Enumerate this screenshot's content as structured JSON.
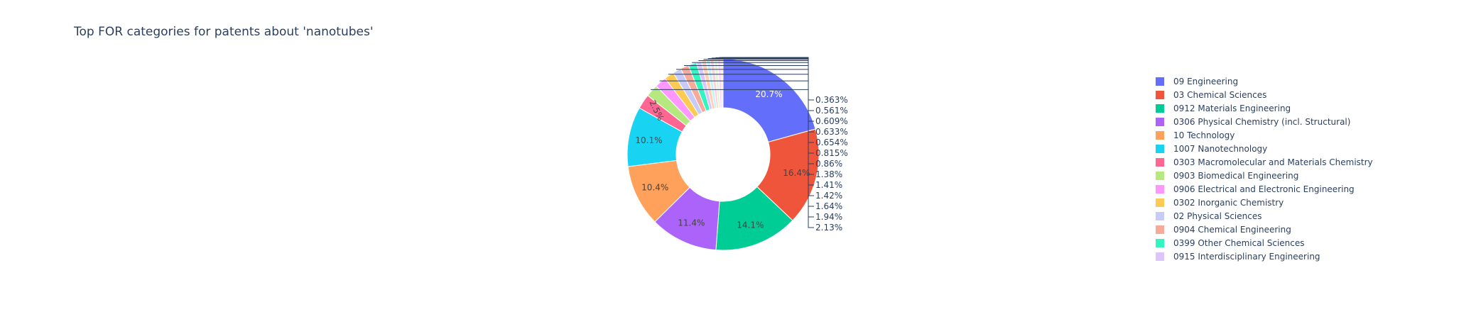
{
  "chart_data": {
    "type": "pie",
    "hole": true,
    "title": "Top FOR categories for patents about 'nanotubes'",
    "legend_position": "right",
    "slices": [
      {
        "label": "09 Engineering",
        "percent": 20.7,
        "text": "20.7%",
        "color": "#636efa"
      },
      {
        "label": "03 Chemical Sciences",
        "percent": 16.4,
        "text": "16.4%",
        "color": "#ef553b"
      },
      {
        "label": "0912 Materials Engineering",
        "percent": 14.1,
        "text": "14.1%",
        "color": "#00cc96"
      },
      {
        "label": "0306 Physical Chemistry (incl. Structural)",
        "percent": 11.4,
        "text": "11.4%",
        "color": "#ab63fa"
      },
      {
        "label": "10 Technology",
        "percent": 10.4,
        "text": "10.4%",
        "color": "#ffa15a"
      },
      {
        "label": "1007 Nanotechnology",
        "percent": 10.1,
        "text": "10.1%",
        "color": "#19d3f3"
      },
      {
        "label": "0303 Macromolecular and Materials Chemistry",
        "percent": 2.5,
        "text": "2.5%",
        "color": "#ff6692"
      },
      {
        "label": "0903 Biomedical Engineering",
        "percent": 2.13,
        "text": "2.13%",
        "color": "#b6e880"
      },
      {
        "label": "0906 Electrical and Electronic Engineering",
        "percent": 1.94,
        "text": "1.94%",
        "color": "#ff97ff"
      },
      {
        "label": "0302 Inorganic Chemistry",
        "percent": 1.64,
        "text": "1.64%",
        "color": "#fecb52"
      },
      {
        "label": "02 Physical Sciences",
        "percent": 1.42,
        "text": "1.42%",
        "color": "#c6cbf8"
      },
      {
        "label": "0904 Chemical Engineering",
        "percent": 1.41,
        "text": "1.41%",
        "color": "#f7a99a"
      },
      {
        "label": "0399 Other Chemical Sciences",
        "percent": 1.38,
        "text": "1.38%",
        "color": "#33f5c0"
      },
      {
        "label": "0915 Interdisciplinary Engineering",
        "percent": 0.86,
        "text": "0.86%",
        "color": "#dcc4fc"
      },
      {
        "label": "",
        "percent": 0.815,
        "text": "0.815%",
        "color": "#ffd1b0"
      },
      {
        "label": "",
        "percent": 0.654,
        "text": "0.654%",
        "color": "#bff2fb"
      },
      {
        "label": "",
        "percent": 0.633,
        "text": "0.633%",
        "color": "#ffd1df"
      },
      {
        "label": "",
        "percent": 0.609,
        "text": "0.609%",
        "color": "#e2f6cf"
      },
      {
        "label": "",
        "percent": 0.561,
        "text": "0.561%",
        "color": "#ffd5ff"
      },
      {
        "label": "",
        "percent": 0.363,
        "text": "0.363%",
        "color": "#ffeaba"
      }
    ]
  }
}
